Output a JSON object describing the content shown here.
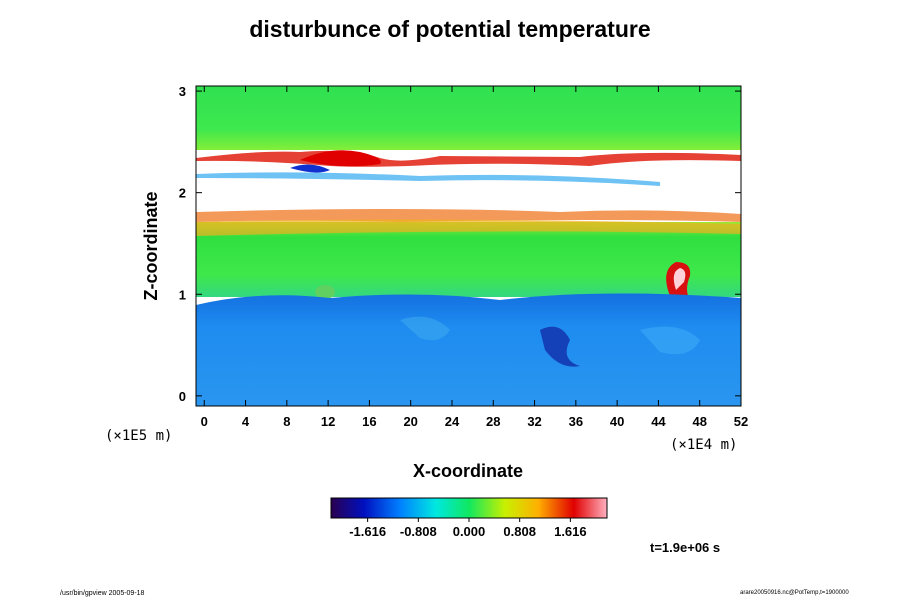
{
  "chart_data": {
    "type": "heatmap",
    "title": "disturbunce of potential temperature",
    "xlabel": "X-coordinate",
    "ylabel": "Z-coordinate",
    "x_scale_note": "(×1E4 m)",
    "y_scale_note": "(×1E5 m)",
    "xlim": [
      -0.8,
      52
    ],
    "ylim": [
      -0.1,
      3.05
    ],
    "x_ticks": [
      0,
      4,
      8,
      12,
      16,
      20,
      24,
      28,
      32,
      36,
      40,
      44,
      48,
      52
    ],
    "y_ticks": [
      0,
      1,
      2,
      3
    ],
    "colorbar": {
      "range": [
        -2.2,
        2.2
      ],
      "ticks": [
        -1.616,
        -0.808,
        0.0,
        0.808,
        1.616
      ],
      "tick_labels": [
        "-1.616",
        "-0.808",
        "0.000",
        "0.808",
        "1.616"
      ],
      "colormap": [
        "#2a0050",
        "#0010c0",
        "#0080ff",
        "#00e8e0",
        "#10e860",
        "#c8f000",
        "#ffb000",
        "#e00000",
        "#ffb0c0"
      ]
    },
    "field_regions": [
      {
        "name": "lower-layer",
        "z_range": [
          0,
          0.95
        ],
        "value_level": "about -1.0",
        "color": "#1e8cf0"
      },
      {
        "name": "middle-layer",
        "z_range": [
          0.95,
          1.7
        ],
        "value_level": "about 0",
        "color": "#3ee83e"
      },
      {
        "name": "masked-band",
        "z_range": [
          1.75,
          2.35
        ],
        "value_level": "undefined (white)",
        "color": "#ffffff"
      },
      {
        "name": "upper-layer",
        "z_range": [
          2.35,
          3.05
        ],
        "value_level": "about 0",
        "color": "#38e85a"
      }
    ]
  },
  "time_label": "t=1.9e+06 s",
  "footer_left": "/usr/bin/gpview 2005-09-18",
  "footer_right": "arare20050916.nc@PotTemp,t=1900000"
}
